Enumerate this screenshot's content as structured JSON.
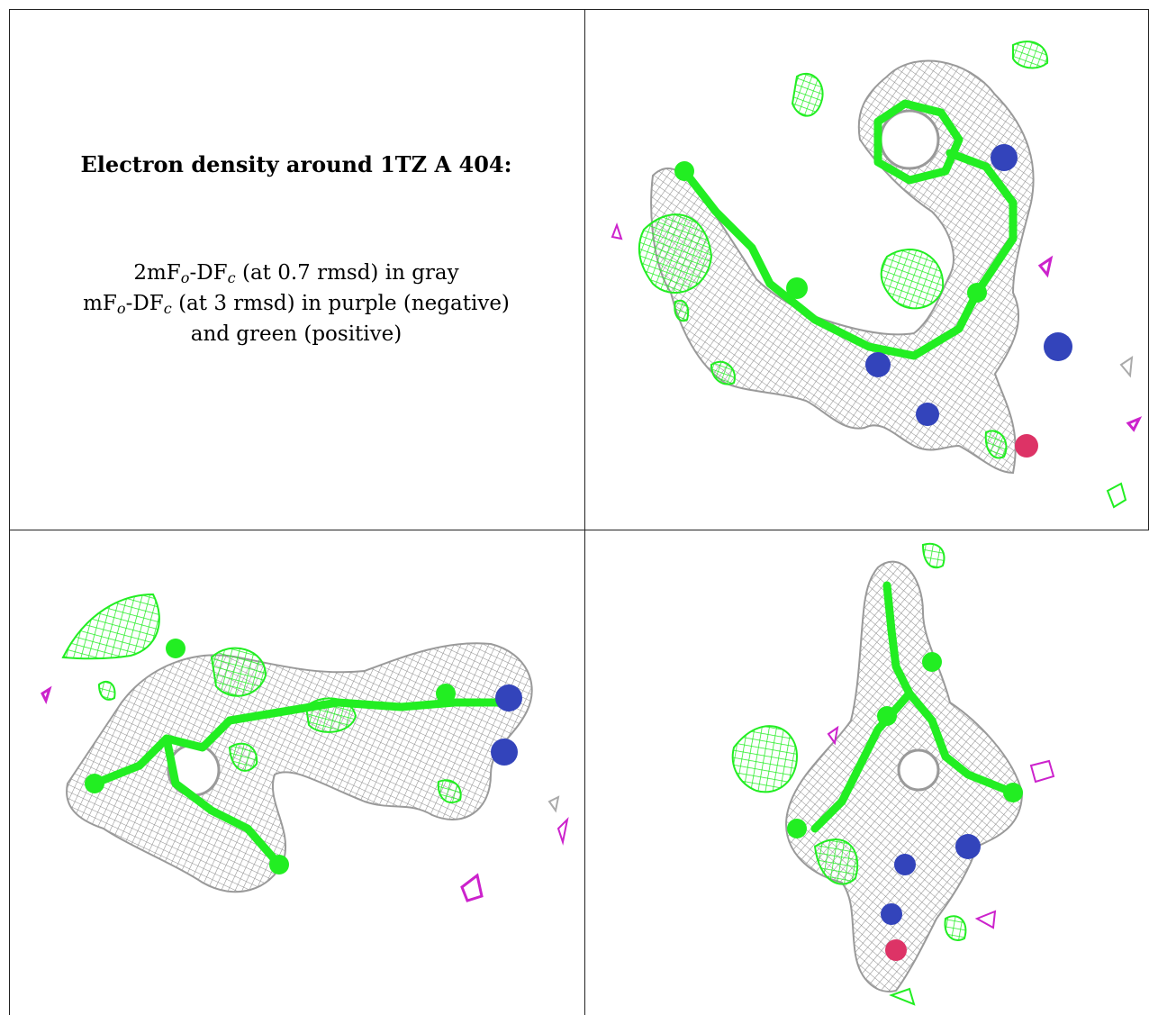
{
  "caption": {
    "title": "Electron density around 1TZ A 404:",
    "line1_pre": "2mF",
    "line1_sub1": "o",
    "line1_mid": "-DF",
    "line1_sub2": "c",
    "line1_post": " (at 0.7 rmsd) in gray",
    "line2_pre": "mF",
    "line2_sub1": "o",
    "line2_mid": "-DF",
    "line2_sub2": "c",
    "line2_post": " (at 3 rmsd) in purple (negative)",
    "line3": "and green (positive)"
  },
  "colors": {
    "mesh_gray": "#9a9a9a",
    "positive_green": "#22ee22",
    "negative_purple": "#cc22cc",
    "nitrogen_blue": "#3344bb",
    "oxygen_red": "#dd3366",
    "grid_line": "#222222"
  },
  "panels": [
    "view-top-right",
    "view-bottom-left",
    "view-bottom-right"
  ]
}
